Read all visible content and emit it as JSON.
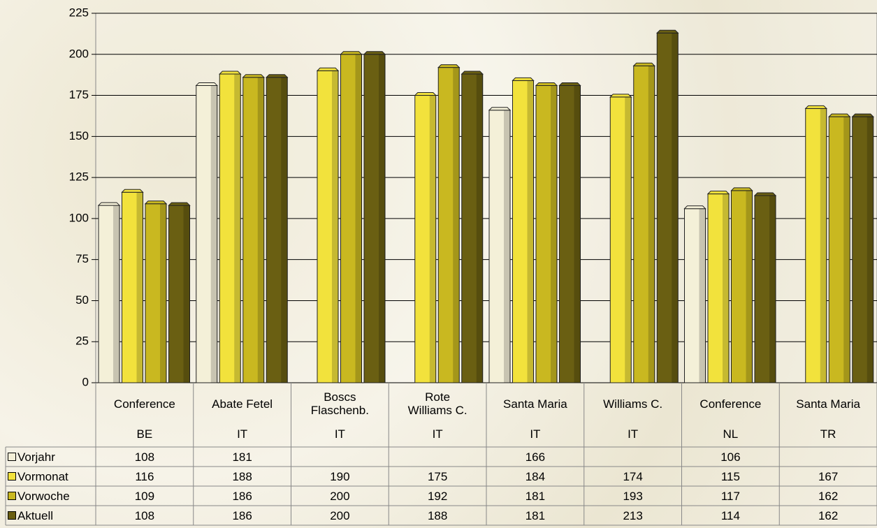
{
  "chart_data": {
    "type": "bar",
    "categories": [
      "Conference",
      "Abate Fetel",
      "Boscs\nFlaschenb.",
      "Rote\nWilliams C.",
      "Santa Maria",
      "Williams C.",
      "Conference",
      "Santa Maria"
    ],
    "countries": [
      "BE",
      "IT",
      "IT",
      "IT",
      "IT",
      "IT",
      "NL",
      "TR"
    ],
    "series": [
      {
        "name": "Vorjahr",
        "color": "#f4f0d8",
        "values": [
          108,
          181,
          null,
          null,
          166,
          null,
          106,
          null
        ]
      },
      {
        "name": "Vormonat",
        "color": "#f2e23c",
        "values": [
          116,
          188,
          190,
          175,
          184,
          174,
          115,
          167
        ]
      },
      {
        "name": "Vorwoche",
        "color": "#c9b820",
        "values": [
          109,
          186,
          200,
          192,
          181,
          193,
          117,
          162
        ]
      },
      {
        "name": "Aktuell",
        "color": "#6a5f12",
        "values": [
          108,
          186,
          200,
          188,
          181,
          213,
          114,
          162
        ]
      }
    ],
    "ylim": [
      0,
      225
    ],
    "yticks": [
      0,
      25,
      50,
      75,
      100,
      125,
      150,
      175,
      200,
      225
    ],
    "grid": true
  }
}
